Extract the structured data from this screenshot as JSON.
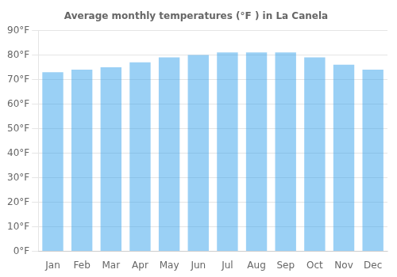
{
  "chart_data": {
    "type": "bar",
    "title": "Average monthly temperatures (°F ) in La Canela",
    "categories": [
      "Jan",
      "Feb",
      "Mar",
      "Apr",
      "May",
      "Jun",
      "Jul",
      "Aug",
      "Sep",
      "Oct",
      "Nov",
      "Dec"
    ],
    "values": [
      73,
      74,
      75,
      77,
      79,
      80,
      81,
      81,
      81,
      79,
      76,
      74
    ],
    "ylim": [
      0,
      90
    ],
    "yticks": [
      {
        "value": 0,
        "label": "0°F"
      },
      {
        "value": 10,
        "label": "10°F"
      },
      {
        "value": 20,
        "label": "20°F"
      },
      {
        "value": 30,
        "label": "30°F"
      },
      {
        "value": 40,
        "label": "40°F"
      },
      {
        "value": 50,
        "label": "50°F"
      },
      {
        "value": 60,
        "label": "60°F"
      },
      {
        "value": 70,
        "label": "70°F"
      },
      {
        "value": 80,
        "label": "80°F"
      },
      {
        "value": 90,
        "label": "90°F"
      }
    ],
    "grid": true
  }
}
